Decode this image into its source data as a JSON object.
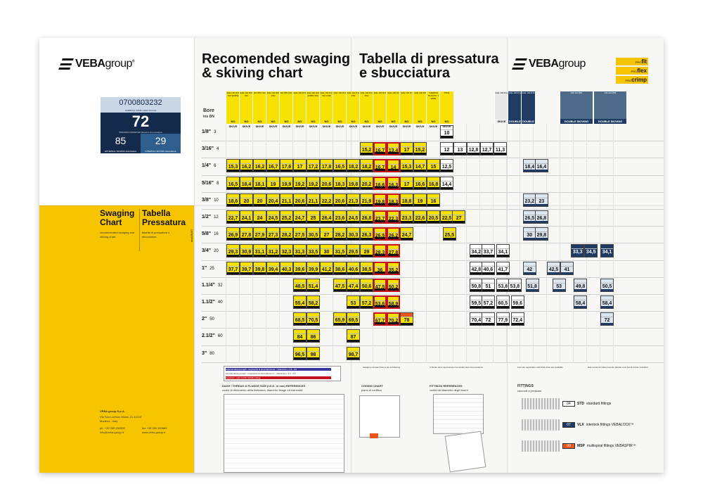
{
  "left_panel": {
    "brand": {
      "main": "VEBA",
      "suffix": "group",
      "reg": "®"
    },
    "card": {
      "code": "0700803232",
      "code_label": "FERRULE CODE codice boccola",
      "swaging": "72",
      "swaging_label": "SWAGING DIAMETER diametro di pressatura",
      "external": "85",
      "external_label": "EXTERNAL SKIVING sbucciatura",
      "internal": "29",
      "internal_label": "INTERNAL SKIVING sbucciatura"
    },
    "swaging_chart": "Swaging Chart",
    "tabella": "Tabella Pressatura",
    "swaging_sub": "recommended swaging and skiving chart",
    "tabella_sub": "tabella di pressatura e sbucciatura",
    "address": "VEBA group S.p.A.",
    "address_sub": "Via San Lorenzo Mutal, 21 41010 Modena - Italy",
    "phone": "ph. +39 059 252559",
    "email": "info@veba-group.it",
    "fax": "fax +39 059 252669",
    "web": "www.veba-group.it",
    "side": "mod.B007"
  },
  "header": {
    "title_en": "Recomended swaging & skiving chart",
    "title_it": "Tabella di pressatura e sbucciatura",
    "badges": [
      {
        "pre": "PRO",
        "word": "fit"
      },
      {
        "pre": "PRO",
        "word": "flex"
      },
      {
        "pre": "PRO",
        "word": "crimp"
      }
    ]
  },
  "table": {
    "bore_label": "Bore",
    "ins_label": "ins",
    "dn_label": "DN",
    "no_skive": "NO SKIVE",
    "skive": "SKIVE",
    "double": "DOUBLE SKIVING",
    "sizes": [
      {
        "label": "1/8\"",
        "dn": "3"
      },
      {
        "label": "3/16\"",
        "dn": "4"
      },
      {
        "label": "1/4\"",
        "dn": "6"
      },
      {
        "label": "5/16\"",
        "dn": "8"
      },
      {
        "label": "3/8\"",
        "dn": "10"
      },
      {
        "label": "1/2\"",
        "dn": "12"
      },
      {
        "label": "5/8\"",
        "dn": "16"
      },
      {
        "label": "3/4\"",
        "dn": "20"
      },
      {
        "label": "1\"",
        "dn": "25"
      },
      {
        "label": "1.1/4\"",
        "dn": "32"
      },
      {
        "label": "1.1/2\"",
        "dn": "40"
      },
      {
        "label": "2\"",
        "dn": "50"
      },
      {
        "label": "2.1/2\"",
        "dn": "60"
      },
      {
        "label": "3\"",
        "dn": "80"
      }
    ],
    "columns": [
      "SAE 100 R1T 1SN EN853",
      "SAE 100 R1A 1SC",
      "EN 853 1SN",
      "SAE 100 R2T 2SN",
      "EN 853 2SC",
      "SAE 100 R16",
      "SAE 100 R2A EN853 2SN",
      "SAE 100 R17 ISO 1436",
      "SAE 100 R19",
      "SAE 100 R12 4SP",
      "SAE 100 R13 4SH",
      "SAE 100 R15",
      "SAE 100 R4",
      "SAE 100 R7",
      "SAE 100 R8",
      "THERMO PLASTIC 1 WIRE",
      "PTFE",
      "SAE 100 R12",
      "SAE 100 R13",
      "SAE 100 R15",
      "4SP EN 856",
      "4SH EN 856"
    ],
    "rows": [
      [
        "",
        "",
        "",
        "",
        "",
        "",
        "",
        "",
        "",
        "",
        "",
        "",
        "",
        "",
        "10",
        "",
        "",
        ""
      ],
      [
        "",
        "",
        "",
        "",
        "",
        "15,2",
        "16,7",
        "13,4",
        "17",
        "15,2",
        "",
        "12",
        "13",
        "12,8",
        "12,7",
        "11,3"
      ],
      [
        "15,3",
        "16,2",
        "16,2",
        "16,7",
        "17,6",
        "17",
        "17,2",
        "17,8",
        "16,5",
        "18,2",
        "18,2",
        "16,7",
        "14",
        "15,3",
        "14,7",
        "15",
        "12,5"
      ],
      [
        "16,5",
        "18,4",
        "18,1",
        "19",
        "19,9",
        "19,2",
        "19,2",
        "20,6",
        "18,3",
        "19,8",
        "20,2",
        "16,6",
        "16,3",
        "17",
        "16,6",
        "16,8",
        "14,4"
      ],
      [
        "18,6",
        "20",
        "20",
        "20,4",
        "21,1",
        "20,6",
        "21,1",
        "22,2",
        "20,6",
        "21,3",
        "21,9",
        "19,8",
        "18,3",
        "18,8",
        "19",
        "16"
      ],
      [
        "22,7",
        "24,1",
        "24",
        "24,5",
        "25,2",
        "24,7",
        "25",
        "26,4",
        "23,6",
        "24,5",
        "26,8",
        "23,7",
        "22,3",
        "23,3",
        "22,6",
        "20,5"
      ],
      [
        "26,9",
        "27,8",
        "27,9",
        "27,3",
        "28,2",
        "27,5",
        "30,5",
        "27",
        "28,2",
        "30,3",
        "26,3",
        "26,5",
        "26,2",
        "24,7"
      ],
      [
        "29,3",
        "30,9",
        "31,1",
        "31,2",
        "32,3",
        "31,3",
        "33,5",
        "30",
        "31,5",
        "29,5",
        "29",
        "28,3",
        "27,8"
      ],
      [
        "37,7",
        "39,7",
        "39,8",
        "39,4",
        "40,3",
        "39,6",
        "39,9",
        "41,2",
        "38,6",
        "40,6",
        "38,5",
        "36",
        "35,2"
      ],
      [
        "48,5",
        "51,4",
        "47,5",
        "47,4",
        "50,6",
        "47,5",
        "50,2"
      ],
      [
        "55,4",
        "58,2",
        "53",
        "57,2",
        "53,6",
        "58,9"
      ],
      [
        "68,5",
        "70,5",
        "65,9",
        "69,5",
        "67,7",
        "70,2",
        "78"
      ],
      [
        "84",
        "86",
        "87"
      ],
      [
        "96,5",
        "98",
        "98,7"
      ]
    ],
    "right_values": [
      "22,5",
      "27",
      "25,5",
      "34,2",
      "33,7",
      "34,1",
      "42,8",
      "40,6",
      "41,7",
      "50,8",
      "51",
      "53,8",
      "53,8",
      "59,5",
      "57,2",
      "60,5",
      "59,6",
      "70,4",
      "72",
      "77,9",
      "72,4",
      "18,4",
      "16,4",
      "23,2",
      "23",
      "26,5",
      "26,8",
      "30",
      "29,8",
      "42",
      "42,5",
      "41",
      "51,8",
      "53",
      "49,8",
      "50,5",
      "58,4",
      "58,4",
      "72",
      "33,3",
      "34,5",
      "34,1"
    ],
    "legend": [
      "external skiving length - lunghezza di sbucciatura est. - tolleranza + 1,5 - 0,5",
      "internal skiving length - lunghezza di sbucciatura int. - tolleranza + 1,5 - 0,5",
      "important - refer to NO SKIVE coding"
    ],
    "notes": [
      "Swaging compact flow to be at following",
      "Il cliente deve ispezionare il terminale dopo la pressatura",
      "Formule registration with fittel wires are available",
      "Dati contenuti nella presente tabella sono forniti a titolo indicativo"
    ]
  },
  "bottom": {
    "dash_title": "DASH / THREAD & FLANGE SIZE (I.D.D. in mm) REFERENCES",
    "dash_sub": "codici di riferimento della filettatura, diametro flange ed estremità",
    "coding_title": "CODING CHART",
    "coding_sub": "piano di codifica",
    "fittings_ref": "FITTINGS REFERENCES",
    "fittings_ref_sub": "codici del diametro degli inserti",
    "fittings_title": "FITTINGS",
    "fittings_sub": "raccordi a pressare",
    "fittings": [
      {
        "code": "04",
        "abbr": "STD",
        "label": "standard fittings"
      },
      {
        "code": "07",
        "abbr": "VLX",
        "label": "interlock fittings VEBALOCK™"
      },
      {
        "code": "09",
        "abbr": "MSP",
        "label": "multispiral fittings VEBASPIR™"
      }
    ]
  }
}
